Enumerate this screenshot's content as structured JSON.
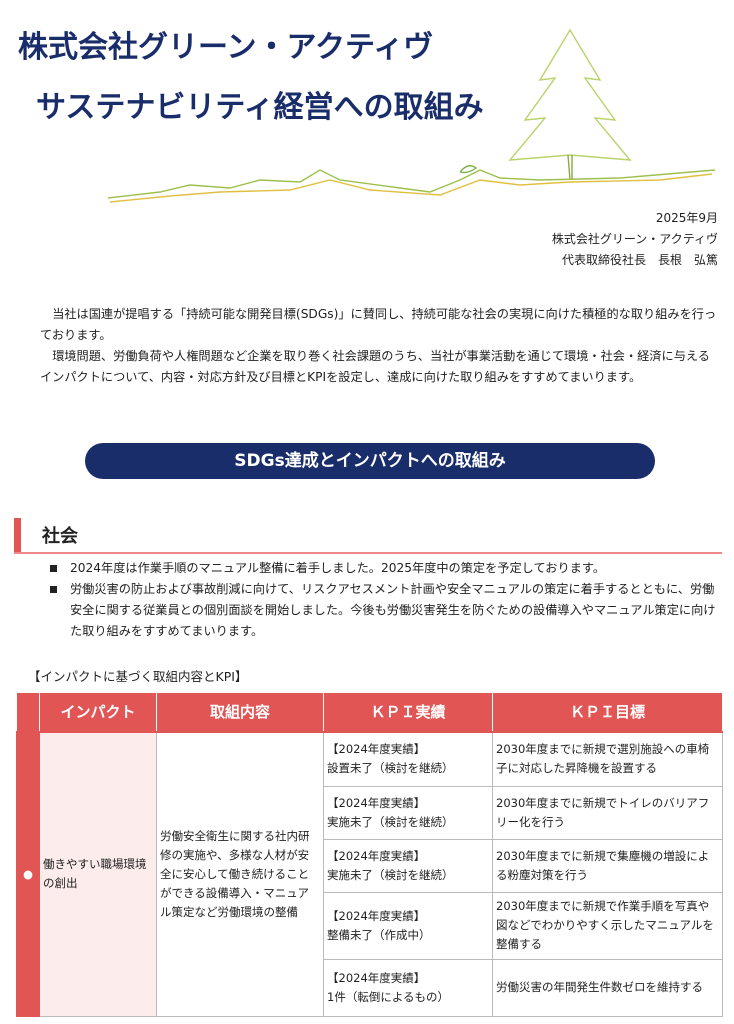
{
  "header": {
    "title_line1": "株式会社グリーン・アクティヴ",
    "title_line2": "サステナビリティ経営への取組み"
  },
  "meta": {
    "date": "2025年9月",
    "company": "株式会社グリーン・アクティヴ",
    "representative": "代表取締役社長　長根　弘篤"
  },
  "intro": [
    "当社は国連が提唱する「持続可能な開発目標(SDGs)」に賛同し、持続可能な社会の実現に向けた積極的な取り組みを行っております。",
    "環境問題、労働負荷や人権問題など企業を取り巻く社会課題のうち、当社が事業活動を通じて環境・社会・経済に与えるインパクトについて、内容・対応方針及び目標とKPIを設定し、達成に向けた取り組みをすすめてまいります。"
  ],
  "banner": "SDGs達成とインパクトへの取組み",
  "section": {
    "title": "社会",
    "bullets": [
      "2024年度は作業手順のマニュアル整備に着手しました。2025年度中の策定を予定しております。",
      "労働災害の防止および事故削減に向けて、リスクアセスメント計画や安全マニュアルの策定に着手するとともに、労働安全に関する従業員との個別面談を開始しました。今後も労働災害発生を防ぐための設備導入やマニュアル策定に向けた取り組みをすすめてまいります。"
    ],
    "caption": "【インパクトに基づく取組内容とKPI】"
  },
  "table": {
    "headers": [
      "インパクト",
      "取組内容",
      "ＫＰＩ実績",
      "ＫＰＩ目標"
    ],
    "impact": "働きやすい職場環境の創出",
    "content": "労働安全衛生に関する社内研修の実施や、多様な人材が安全に安心して働き続けることができる設備導入・マニュアル策定など労働環境の整備",
    "rows": [
      {
        "result_label": "【2024年度実績】",
        "result": "設置未了（検討を継続）",
        "target": "2030年度までに新規で選別施設への車椅子に対応した昇降機を設置する"
      },
      {
        "result_label": "【2024年度実績】",
        "result": "実施未了（検討を継続）",
        "target": "2030年度までに新規でトイレのバリアフリー化を行う"
      },
      {
        "result_label": "【2024年度実績】",
        "result": "実施未了（検討を継続）",
        "target": "2030年度までに新規で集塵機の増設による粉塵対策を行う"
      },
      {
        "result_label": "【2024年度実績】",
        "result": "整備未了（作成中）",
        "target": "2030年度までに新規で作業手順を写真や図などでわかりやすく示したマニュアルを整備する"
      },
      {
        "result_label": "【2024年度実績】",
        "result": "1件（転倒によるもの）",
        "target": "労働災害の年間発生件数ゼロを維持する"
      }
    ]
  },
  "colors": {
    "navy": "#1a2d6b",
    "red": "#e25555",
    "pink": "#fdecec"
  }
}
